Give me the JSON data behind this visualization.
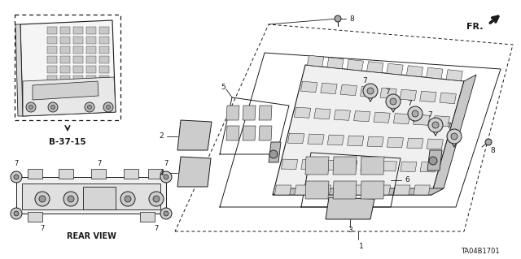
{
  "bg_color": "#ffffff",
  "line_color": "#1a1a1a",
  "fig_width": 6.4,
  "fig_height": 3.19,
  "dpi": 100,
  "diagram_id": "TA04B1701",
  "ref_label": "B-37-15",
  "rear_view_label": "REAR VIEW"
}
